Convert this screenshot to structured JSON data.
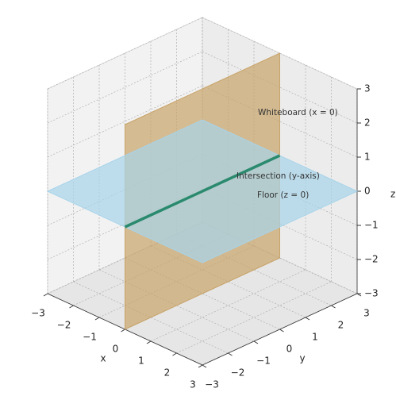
{
  "chart_data": {
    "type": "planes3d",
    "xlabel": "x",
    "ylabel": "y",
    "zlabel": "z",
    "xlim": [
      -3,
      3
    ],
    "ylim": [
      -3,
      3
    ],
    "zlim": [
      -3,
      3
    ],
    "xticks": [
      {
        "value": -3,
        "label": "−3"
      },
      {
        "value": -2,
        "label": "−2"
      },
      {
        "value": -1,
        "label": "−1"
      },
      0,
      1,
      2,
      3
    ],
    "yticks": [
      {
        "value": -3,
        "label": "−3"
      },
      {
        "value": -2,
        "label": "−2"
      },
      {
        "value": -1,
        "label": "−1"
      },
      0,
      1,
      2,
      3
    ],
    "zticks": [
      {
        "value": -3,
        "label": "−3"
      },
      {
        "value": -2,
        "label": "−2"
      },
      {
        "value": -1,
        "label": "−1"
      },
      0,
      1,
      2,
      3
    ],
    "grid": true,
    "planes": [
      {
        "name": "Whiteboard (x = 0)",
        "axis": "x",
        "value": 0,
        "color": "#c8a46a"
      },
      {
        "name": "Floor (z = 0)",
        "axis": "z",
        "value": 0,
        "color": "#a8d4ea"
      }
    ],
    "line": {
      "name": "Intersection (y-axis)",
      "color": "#2a8a6e",
      "x": [
        0,
        0
      ],
      "y": [
        -3,
        3
      ],
      "z": [
        0,
        0
      ]
    }
  }
}
